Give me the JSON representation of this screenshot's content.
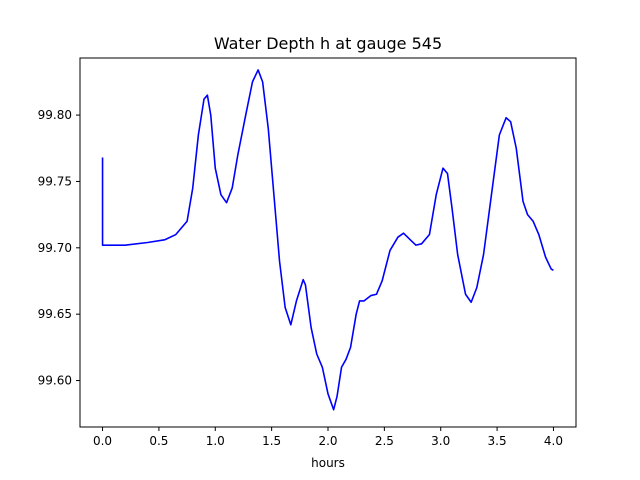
{
  "chart_data": {
    "type": "line",
    "title": "Water Depth h at gauge 545",
    "xlabel": "hours",
    "ylabel": "",
    "xlim": [
      -0.2,
      4.2
    ],
    "ylim": [
      99.565,
      99.843
    ],
    "x_ticks": [
      0.0,
      0.5,
      1.0,
      1.5,
      2.0,
      2.5,
      3.0,
      3.5,
      4.0
    ],
    "x_tick_labels": [
      "0.0",
      "0.5",
      "1.0",
      "1.5",
      "2.0",
      "2.5",
      "3.0",
      "3.5",
      "4.0"
    ],
    "y_ticks": [
      99.6,
      99.65,
      99.7,
      99.75,
      99.8
    ],
    "y_tick_labels": [
      "99.60",
      "99.65",
      "99.70",
      "99.75",
      "99.80"
    ],
    "grid": false,
    "legend": false,
    "series": [
      {
        "color": "#0000ff",
        "points": [
          [
            0.0,
            99.768
          ],
          [
            0.0,
            99.702
          ],
          [
            0.2,
            99.702
          ],
          [
            0.4,
            99.704
          ],
          [
            0.55,
            99.706
          ],
          [
            0.65,
            99.71
          ],
          [
            0.75,
            99.72
          ],
          [
            0.8,
            99.745
          ],
          [
            0.85,
            99.785
          ],
          [
            0.9,
            99.812
          ],
          [
            0.93,
            99.815
          ],
          [
            0.96,
            99.8
          ],
          [
            1.0,
            99.76
          ],
          [
            1.05,
            99.74
          ],
          [
            1.1,
            99.734
          ],
          [
            1.15,
            99.745
          ],
          [
            1.2,
            99.77
          ],
          [
            1.27,
            99.8
          ],
          [
            1.33,
            99.825
          ],
          [
            1.38,
            99.834
          ],
          [
            1.42,
            99.825
          ],
          [
            1.47,
            99.79
          ],
          [
            1.52,
            99.74
          ],
          [
            1.57,
            99.69
          ],
          [
            1.62,
            99.655
          ],
          [
            1.67,
            99.642
          ],
          [
            1.72,
            99.66
          ],
          [
            1.78,
            99.676
          ],
          [
            1.8,
            99.672
          ],
          [
            1.85,
            99.64
          ],
          [
            1.9,
            99.62
          ],
          [
            1.95,
            99.61
          ],
          [
            2.0,
            99.59
          ],
          [
            2.05,
            99.578
          ],
          [
            2.08,
            99.588
          ],
          [
            2.12,
            99.61
          ],
          [
            2.16,
            99.616
          ],
          [
            2.2,
            99.625
          ],
          [
            2.25,
            99.65
          ],
          [
            2.28,
            99.66
          ],
          [
            2.32,
            99.66
          ],
          [
            2.38,
            99.664
          ],
          [
            2.43,
            99.665
          ],
          [
            2.48,
            99.675
          ],
          [
            2.55,
            99.698
          ],
          [
            2.62,
            99.708
          ],
          [
            2.67,
            99.711
          ],
          [
            2.73,
            99.706
          ],
          [
            2.78,
            99.702
          ],
          [
            2.83,
            99.703
          ],
          [
            2.9,
            99.71
          ],
          [
            2.96,
            99.74
          ],
          [
            3.02,
            99.76
          ],
          [
            3.06,
            99.756
          ],
          [
            3.1,
            99.73
          ],
          [
            3.15,
            99.695
          ],
          [
            3.22,
            99.665
          ],
          [
            3.27,
            99.659
          ],
          [
            3.32,
            99.67
          ],
          [
            3.38,
            99.695
          ],
          [
            3.45,
            99.74
          ],
          [
            3.52,
            99.785
          ],
          [
            3.58,
            99.798
          ],
          [
            3.62,
            99.795
          ],
          [
            3.67,
            99.775
          ],
          [
            3.73,
            99.735
          ],
          [
            3.77,
            99.725
          ],
          [
            3.82,
            99.72
          ],
          [
            3.87,
            99.71
          ],
          [
            3.93,
            99.693
          ],
          [
            3.98,
            99.684
          ],
          [
            4.0,
            99.683
          ]
        ]
      }
    ]
  }
}
